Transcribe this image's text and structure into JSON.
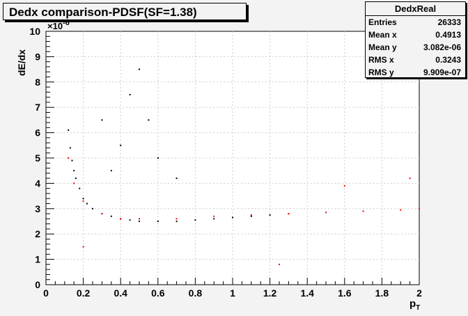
{
  "title": "Dedx comparison-PDSF(SF=1.38)",
  "stats": {
    "name": "DedxReal",
    "rows": [
      {
        "label": "Entries",
        "value": "26333"
      },
      {
        "label": "Mean x",
        "value": "0.4913"
      },
      {
        "label": "Mean y",
        "value": "3.082e-06"
      },
      {
        "label": "RMS x",
        "value": "0.3243"
      },
      {
        "label": "RMS y",
        "value": "9.909e-07"
      }
    ]
  },
  "chart_data": {
    "type": "scatter",
    "title": "Dedx comparison-PDSF(SF=1.38)",
    "xlabel": "p_T",
    "ylabel": "dE/dx",
    "y_multiplier": "×10^-6",
    "xlim": [
      0,
      2
    ],
    "ylim": [
      0,
      10
    ],
    "x_ticks": [
      "0",
      "0.2",
      "0.4",
      "0.6",
      "0.8",
      "1",
      "1.2",
      "1.4",
      "1.6",
      "1.8",
      "2"
    ],
    "y_ticks": [
      "0",
      "1",
      "2",
      "3",
      "4",
      "5",
      "6",
      "7",
      "8",
      "9",
      "10"
    ],
    "grid": true,
    "series": [
      {
        "name": "DedxReal",
        "color": "#000000",
        "points": [
          [
            0.12,
            6.1
          ],
          [
            0.13,
            5.4
          ],
          [
            0.14,
            4.9
          ],
          [
            0.15,
            4.5
          ],
          [
            0.16,
            4.2
          ],
          [
            0.18,
            3.8
          ],
          [
            0.2,
            3.4
          ],
          [
            0.22,
            3.2
          ],
          [
            0.25,
            3.0
          ],
          [
            0.3,
            2.8
          ],
          [
            0.35,
            2.7
          ],
          [
            0.4,
            2.6
          ],
          [
            0.45,
            2.55
          ],
          [
            0.5,
            2.5
          ],
          [
            0.6,
            2.5
          ],
          [
            0.7,
            2.5
          ],
          [
            0.8,
            2.55
          ],
          [
            0.9,
            2.6
          ],
          [
            1.0,
            2.65
          ],
          [
            1.1,
            2.7
          ],
          [
            1.2,
            2.75
          ],
          [
            1.3,
            2.8
          ],
          [
            0.45,
            7.5
          ],
          [
            0.5,
            8.5
          ],
          [
            0.55,
            6.5
          ],
          [
            0.6,
            5.0
          ],
          [
            0.7,
            4.2
          ],
          [
            0.4,
            5.5
          ],
          [
            0.35,
            4.5
          ],
          [
            0.3,
            6.5
          ]
        ]
      },
      {
        "name": "PDSF",
        "color": "#ff0000",
        "points": [
          [
            0.12,
            5.0
          ],
          [
            0.15,
            4.0
          ],
          [
            0.2,
            3.3
          ],
          [
            0.3,
            2.8
          ],
          [
            0.4,
            2.6
          ],
          [
            0.5,
            2.6
          ],
          [
            0.7,
            2.6
          ],
          [
            0.9,
            2.7
          ],
          [
            1.1,
            2.75
          ],
          [
            1.3,
            2.8
          ],
          [
            1.5,
            2.85
          ],
          [
            1.7,
            2.9
          ],
          [
            1.9,
            2.95
          ],
          [
            2.0,
            3.0
          ],
          [
            1.25,
            0.8
          ],
          [
            0.2,
            1.5
          ],
          [
            1.6,
            3.9
          ],
          [
            1.95,
            4.2
          ]
        ]
      }
    ]
  }
}
